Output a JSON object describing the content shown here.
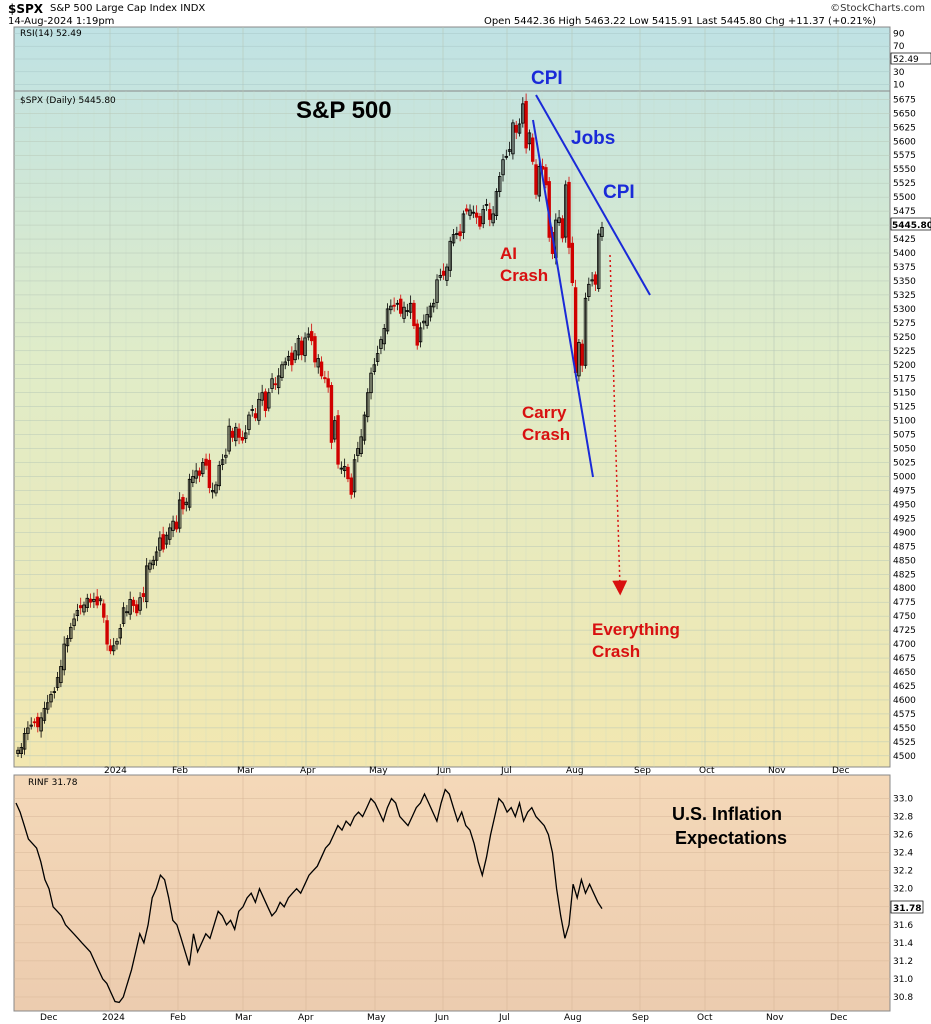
{
  "header": {
    "symbol": "$SPX",
    "name": "S&P 500 Large Cap Index INDX",
    "datetime": "14-Aug-2024 1:19pm",
    "ohlc": "Open 5442.36  High 5463.22  Low 5415.91  Last 5445.80  Chg +11.37 (+0.21%)",
    "brand": "©StockCharts.com"
  },
  "colors": {
    "up": "#000000",
    "down": "#d00000",
    "blue_lines": "#1a2ad8",
    "red_text": "#d81010",
    "blue_text": "#1a2ad8"
  },
  "chart_data": [
    {
      "type": "line",
      "legend": "RSI(14) 52.49",
      "ylim": [
        0,
        100
      ],
      "y_ticks": [
        10,
        30,
        50,
        70,
        90
      ],
      "last_value": 52.49,
      "last_label": "52.49"
    },
    {
      "type": "candlestick",
      "legend": "$SPX (Daily) 5445.80",
      "title": "S&P 500",
      "ylim": [
        4480,
        5690
      ],
      "y_ticks": [
        4500,
        4525,
        4550,
        4575,
        4600,
        4625,
        4650,
        4675,
        4700,
        4725,
        4750,
        4775,
        4800,
        4825,
        4850,
        4875,
        4900,
        4925,
        4950,
        4975,
        5000,
        5025,
        5050,
        5075,
        5100,
        5125,
        5150,
        5175,
        5200,
        5225,
        5250,
        5275,
        5300,
        5325,
        5350,
        5375,
        5400,
        5425,
        5450,
        5475,
        5500,
        5525,
        5550,
        5575,
        5600,
        5625,
        5650,
        5675
      ],
      "x_ticks": [
        "2024",
        "Feb",
        "Mar",
        "Apr",
        "May",
        "Jun",
        "Jul",
        "Aug",
        "Sep",
        "Oct",
        "Nov",
        "Dec"
      ],
      "last_label": "5445.80",
      "closes": [
        4510,
        4515,
        4540,
        4550,
        4555,
        4560,
        4552,
        4568,
        4585,
        4595,
        4610,
        4615,
        4640,
        4660,
        4700,
        4710,
        4730,
        4745,
        4760,
        4765,
        4770,
        4782,
        4775,
        4780,
        4770,
        4781,
        4748,
        4700,
        4688,
        4697,
        4705,
        4728,
        4765,
        4758,
        4780,
        4769,
        4756,
        4783,
        4785,
        4840,
        4845,
        4850,
        4865,
        4890,
        4870,
        4895,
        4908,
        4920,
        4906,
        4958,
        4942,
        4954,
        4995,
        5000,
        5010,
        5002,
        5025,
        5020,
        4980,
        4975,
        4985,
        5020,
        5030,
        5038,
        5090,
        5070,
        5088,
        5070,
        5065,
        5078,
        5110,
        5120,
        5105,
        5138,
        5150,
        5118,
        5150,
        5175,
        5165,
        5180,
        5200,
        5205,
        5215,
        5200,
        5225,
        5247,
        5218,
        5248,
        5255,
        5243,
        5205,
        5211,
        5180,
        5175,
        5160,
        5061,
        5100,
        5022,
        5015,
        5018,
        4996,
        4968,
        5030,
        5050,
        5071,
        5110,
        5150,
        5185,
        5200,
        5220,
        5245,
        5265,
        5300,
        5305,
        5305,
        5310,
        5292,
        5303,
        5297,
        5310,
        5270,
        5235,
        5266,
        5278,
        5290,
        5305,
        5310,
        5352,
        5360,
        5360,
        5375,
        5421,
        5433,
        5435,
        5431,
        5470,
        5475,
        5477,
        5473,
        5464,
        5448,
        5478,
        5487,
        5460,
        5470,
        5510,
        5537,
        5567,
        5573,
        5585,
        5633,
        5616,
        5631,
        5667,
        5588,
        5615,
        5564,
        5505,
        5555,
        5550,
        5522,
        5428,
        5399,
        5459,
        5463,
        5427,
        5522,
        5410,
        5347,
        5186,
        5240,
        5199,
        5319,
        5344,
        5352,
        5344,
        5434,
        5445.8
      ],
      "annotations": [
        "CPI",
        "Jobs",
        "CPI",
        "AI Crash",
        "Carry Crash",
        "Everything Crash"
      ]
    },
    {
      "type": "line",
      "legend": "RINF 31.78",
      "title": "U.S. Inflation Expectations",
      "ylim": [
        30.7,
        33.15
      ],
      "y_ticks": [
        30.8,
        31.0,
        31.2,
        31.4,
        31.6,
        31.8,
        32.0,
        32.2,
        32.4,
        32.6,
        32.8,
        33.0
      ],
      "x_ticks": [
        "Dec",
        "2024",
        "Feb",
        "Mar",
        "Apr",
        "May",
        "Jun",
        "Jul",
        "Aug",
        "Sep",
        "Oct",
        "Nov",
        "Dec"
      ],
      "last_label": "31.78",
      "values": [
        32.95,
        32.85,
        32.7,
        32.55,
        32.5,
        32.45,
        32.3,
        32.1,
        32.0,
        31.8,
        31.75,
        31.7,
        31.6,
        31.55,
        31.5,
        31.45,
        31.4,
        31.35,
        31.3,
        31.2,
        31.1,
        31.0,
        30.95,
        30.85,
        30.75,
        30.74,
        30.8,
        30.95,
        31.1,
        31.3,
        31.5,
        31.4,
        31.6,
        31.9,
        32.0,
        32.15,
        32.1,
        31.9,
        31.65,
        31.6,
        31.45,
        31.3,
        31.15,
        31.5,
        31.3,
        31.4,
        31.5,
        31.45,
        31.6,
        31.75,
        31.7,
        31.6,
        31.65,
        31.55,
        31.75,
        31.8,
        31.9,
        31.95,
        31.85,
        32.0,
        31.9,
        31.8,
        31.7,
        31.75,
        31.85,
        31.8,
        31.9,
        31.95,
        32.0,
        31.95,
        32.05,
        32.15,
        32.2,
        32.25,
        32.35,
        32.45,
        32.5,
        32.6,
        32.7,
        32.65,
        32.75,
        32.7,
        32.8,
        32.85,
        32.8,
        32.9,
        33.0,
        32.95,
        32.85,
        32.75,
        32.9,
        33.0,
        32.95,
        32.8,
        32.75,
        32.7,
        32.8,
        32.9,
        32.95,
        33.05,
        32.95,
        32.85,
        32.75,
        32.95,
        33.1,
        33.05,
        32.9,
        32.75,
        32.85,
        32.7,
        32.65,
        32.5,
        32.3,
        32.15,
        32.35,
        32.6,
        32.8,
        33.0,
        32.95,
        32.85,
        32.9,
        32.8,
        32.95,
        32.75,
        32.85,
        32.9,
        32.8,
        32.75,
        32.7,
        32.6,
        32.4,
        32.0,
        31.7,
        31.45,
        31.6,
        32.05,
        31.9,
        32.1,
        31.95,
        32.05,
        31.95,
        31.85,
        31.78
      ]
    }
  ]
}
